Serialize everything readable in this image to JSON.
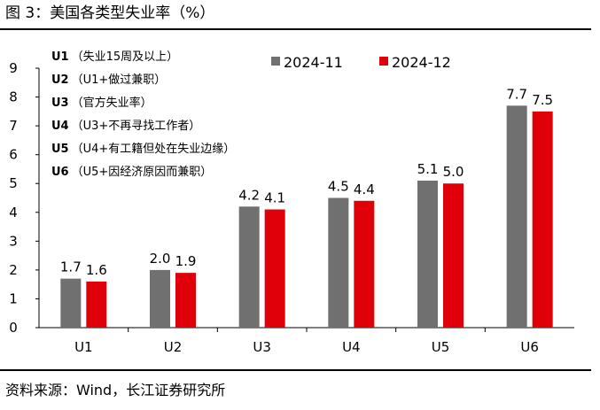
{
  "figure": {
    "title": "图 3：美国各类型失业率（%）",
    "source": "资料来源：Wind，长江证券研究所"
  },
  "chart_data": {
    "type": "bar",
    "categories": [
      "U1",
      "U2",
      "U3",
      "U4",
      "U5",
      "U6"
    ],
    "series": [
      {
        "name": "2024-11",
        "color": "#707070",
        "values": [
          1.7,
          2.0,
          4.2,
          4.5,
          5.1,
          7.7
        ],
        "labels": [
          "1.7",
          "2.0",
          "4.2",
          "4.5",
          "5.1",
          "7.7"
        ]
      },
      {
        "name": "2024-12",
        "color": "#e0000a",
        "values": [
          1.6,
          1.9,
          4.1,
          4.4,
          5.0,
          7.5
        ],
        "labels": [
          "1.6",
          "1.9",
          "4.1",
          "4.4",
          "5.0",
          "7.5"
        ]
      }
    ],
    "ylim": [
      0,
      9
    ],
    "yticks": [
      "0",
      "1",
      "2",
      "3",
      "4",
      "5",
      "6",
      "7",
      "8",
      "9"
    ],
    "grid": false,
    "legend_position": "top-right",
    "annotations": [
      {
        "code": "U1",
        "text": "（失业15周及以上）"
      },
      {
        "code": "U2",
        "text": "（U1+做过兼职）"
      },
      {
        "code": "U3",
        "text": "（官方失业率）"
      },
      {
        "code": "U4",
        "text": "（U3+不再寻找工作者）"
      },
      {
        "code": "U5",
        "text": "（U4+有工籍但处在失业边缘）"
      },
      {
        "code": "U6",
        "text": "（U5+因经济原因而兼职）"
      }
    ]
  }
}
